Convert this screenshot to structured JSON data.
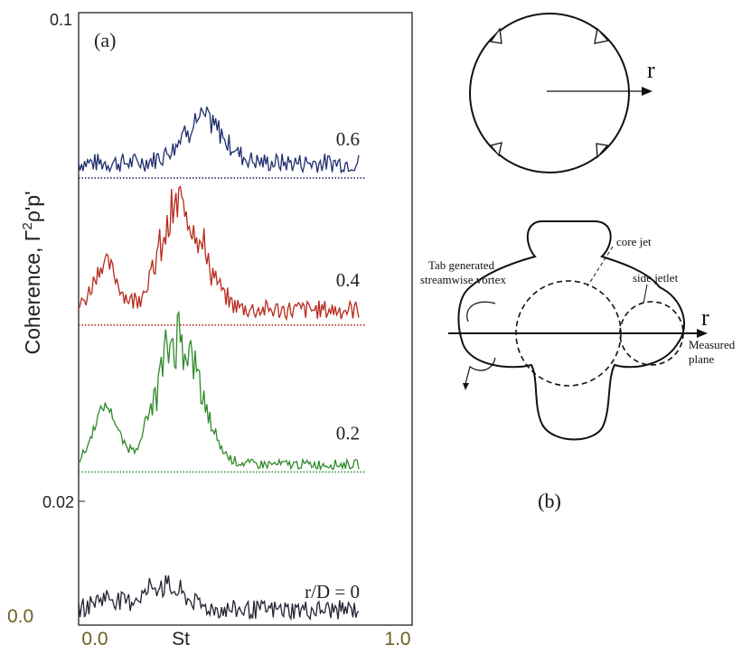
{
  "panel_a": {
    "label": "(a)",
    "ylabel_prefix": "Coherence, ",
    "ylabel_symbol": "Γ",
    "ylabel_sup": "2",
    "ylabel_suffix": "ρ'p'",
    "xlabel": "St",
    "x_ticks": [
      "0.0",
      "1.0"
    ],
    "y_tick_top": "0.1",
    "y_tick_mid": "0.02",
    "y_tick_bottom": "0.0"
  },
  "panel_b": {
    "label": "(b)",
    "r_top": "r",
    "r_bottom": "r",
    "tab_label_line1": "Tab generated",
    "tab_label_line2": "streamwise vortex",
    "core_jet_label": "core jet",
    "side_jetlet_label": "side jetlet",
    "measured_line1": "Measured",
    "measured_line2": "plane"
  },
  "colors": {
    "series_06": "#1f2f6e",
    "series_04": "#b8291c",
    "series_02": "#2f8a2a",
    "series_00": "#222233",
    "tick_00_label": "#6b6220"
  },
  "chart_data": {
    "type": "line",
    "title": "",
    "xlabel": "St",
    "ylabel": "Coherence, Γ²ρ'p'",
    "xlim": [
      0.0,
      1.0
    ],
    "layout": "stacked series with vertical offsets",
    "series": [
      {
        "name": "0.6",
        "baseline": 0.073,
        "peak_st": 0.37,
        "peak_amplitude": 0.007,
        "floor_amplitude": 0.002,
        "color": "#1f2f6e"
      },
      {
        "name": "0.4",
        "baseline": 0.049,
        "peak_st": 0.31,
        "peak_amplitude": 0.017,
        "floor_amplitude": 0.002,
        "color": "#b8291c"
      },
      {
        "name": "0.2",
        "baseline": 0.025,
        "peak_st": 0.3,
        "peak_amplitude": 0.021,
        "floor_amplitude": 0.001,
        "color": "#2f8a2a"
      },
      {
        "name": "r/D = 0",
        "baseline": 0.0,
        "peak_st": 0.25,
        "peak_amplitude": 0.004,
        "floor_amplitude": 0.002,
        "color": "#222233"
      }
    ]
  }
}
